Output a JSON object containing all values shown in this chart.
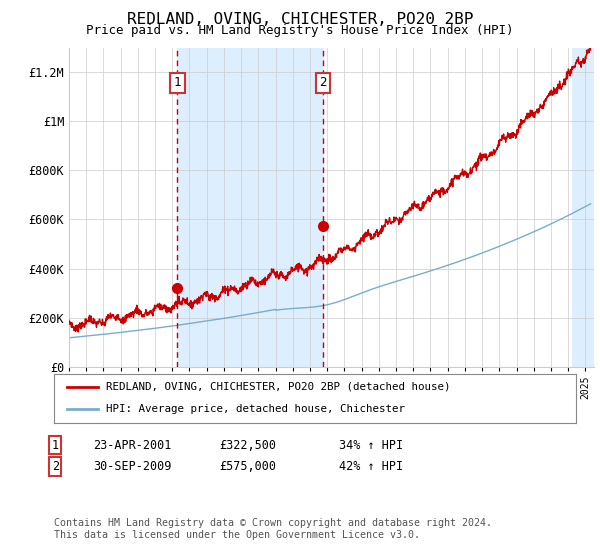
{
  "title": "REDLAND, OVING, CHICHESTER, PO20 2BP",
  "subtitle": "Price paid vs. HM Land Registry's House Price Index (HPI)",
  "legend_line1": "REDLAND, OVING, CHICHESTER, PO20 2BP (detached house)",
  "legend_line2": "HPI: Average price, detached house, Chichester",
  "annotation1_date": "23-APR-2001",
  "annotation1_price": "£322,500",
  "annotation1_hpi": "34% ↑ HPI",
  "annotation1_year": 2001.3,
  "annotation1_price_val": 322500,
  "annotation2_date": "30-SEP-2009",
  "annotation2_price": "£575,000",
  "annotation2_hpi": "42% ↑ HPI",
  "annotation2_year": 2009.75,
  "annotation2_price_val": 575000,
  "red_color": "#cc0000",
  "blue_color": "#7aadcc",
  "shaded_color": "#ddeeff",
  "background_color": "#ffffff",
  "grid_color": "#cccccc",
  "annotation_box_color": "#cc3333",
  "footer_text": "Contains HM Land Registry data © Crown copyright and database right 2024.\nThis data is licensed under the Open Government Licence v3.0.",
  "ylim": [
    0,
    1300000
  ],
  "yticks": [
    0,
    200000,
    400000,
    600000,
    800000,
    1000000,
    1200000
  ],
  "ytick_labels": [
    "£0",
    "£200K",
    "£400K",
    "£600K",
    "£800K",
    "£1M",
    "£1.2M"
  ],
  "xmin": 1995,
  "xmax": 2025.5
}
